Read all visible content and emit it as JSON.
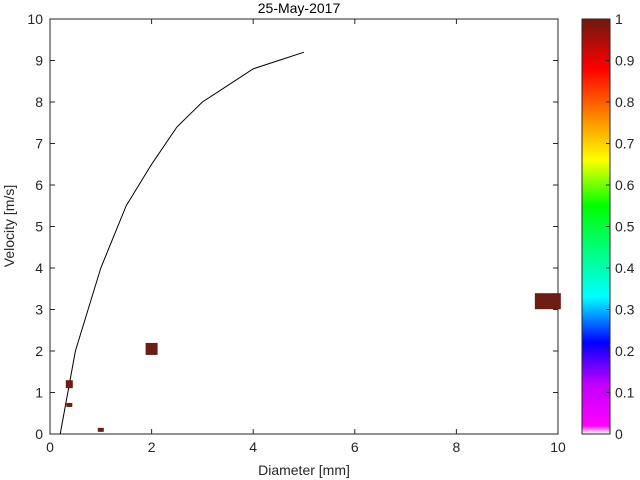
{
  "chart_data": {
    "type": "scatter",
    "title": "25-May-2017",
    "xlabel": "Diameter [mm]",
    "ylabel": "Velocity [m/s]",
    "xlim": [
      0,
      10
    ],
    "ylim": [
      0,
      10
    ],
    "xticks": [
      0,
      2,
      4,
      6,
      8,
      10
    ],
    "yticks": [
      0,
      1,
      2,
      3,
      4,
      5,
      6,
      7,
      8,
      9,
      10
    ],
    "grid": false,
    "curve": {
      "x": [
        0.2,
        0.5,
        1.0,
        1.5,
        2.0,
        2.5,
        3.0,
        3.5,
        4.0,
        4.5,
        5.0
      ],
      "y": [
        0.0,
        2.0,
        4.0,
        5.5,
        6.5,
        7.4,
        8.0,
        8.4,
        8.8,
        9.0,
        9.2
      ],
      "color": "#000000"
    },
    "points": [
      {
        "x": 9.8,
        "y": 3.2,
        "value": 1
      },
      {
        "x": 2.0,
        "y": 2.05,
        "value": 1
      },
      {
        "x": 0.38,
        "y": 1.2,
        "value": 1
      },
      {
        "x": 0.38,
        "y": 0.7,
        "value": 1
      },
      {
        "x": 1.0,
        "y": 0.1,
        "value": 1
      }
    ],
    "colorbar": {
      "ticks": [
        0,
        0.1,
        0.2,
        0.3,
        0.4,
        0.5,
        0.6,
        0.7,
        0.8,
        0.9,
        1
      ],
      "tick_labels": [
        "0",
        "0.1",
        "0.2",
        "0.3",
        "0.4",
        "0.5",
        "0.6",
        "0.7",
        "0.8",
        "0.9",
        "1"
      ],
      "range": [
        0,
        1
      ],
      "colormap": [
        "#ffffff",
        "#ff00ff",
        "#0000ff",
        "#00ffff",
        "#00ff00",
        "#ffff00",
        "#ff8000",
        "#ff0000",
        "#6b1a12"
      ]
    },
    "point_color": "#6b1e14"
  }
}
